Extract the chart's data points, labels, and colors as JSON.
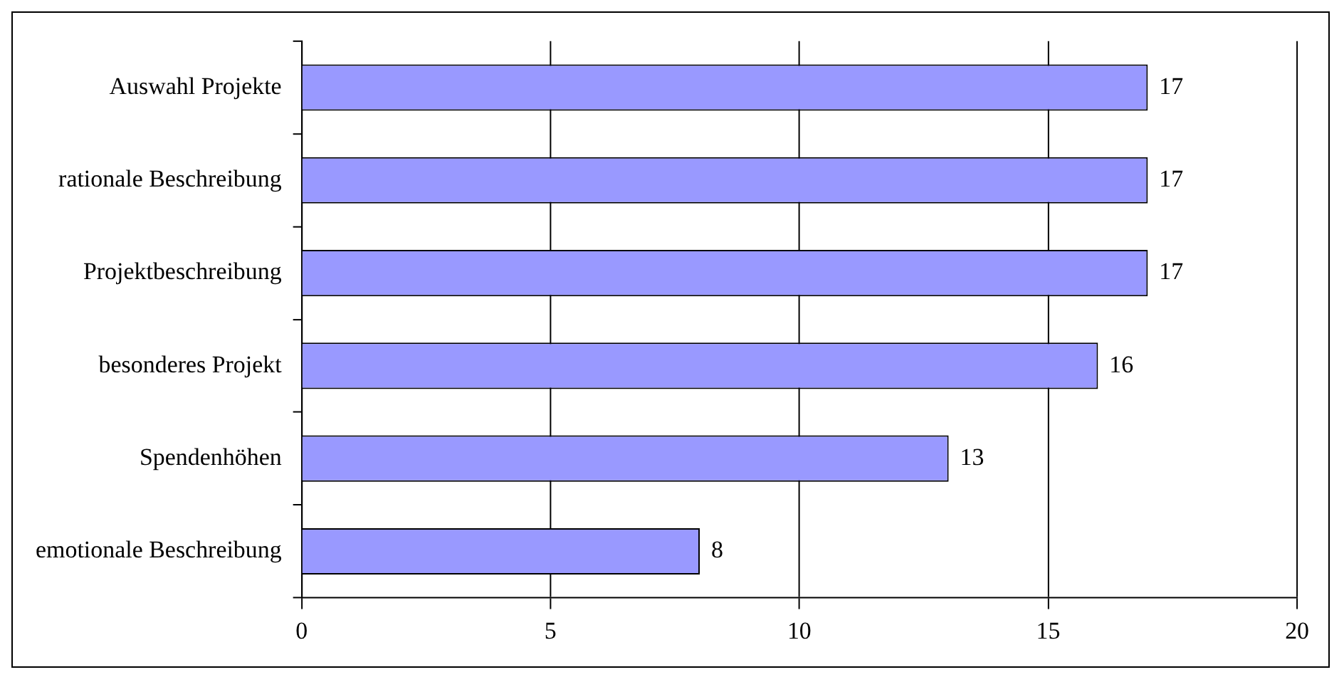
{
  "chart_data": {
    "type": "bar",
    "orientation": "horizontal",
    "categories": [
      "Auswahl Projekte",
      "rationale Beschreibung",
      "Projektbeschreibung",
      "besonderes Projekt",
      "Spendenhöhen",
      "emotionale Beschreibung"
    ],
    "values": [
      17,
      17,
      17,
      16,
      13,
      8
    ],
    "color": "#9999ff",
    "xlim": [
      0,
      20
    ],
    "xticks": [
      0,
      5,
      10,
      15,
      20
    ],
    "grid": "x",
    "data_labels": true,
    "legend": false
  }
}
